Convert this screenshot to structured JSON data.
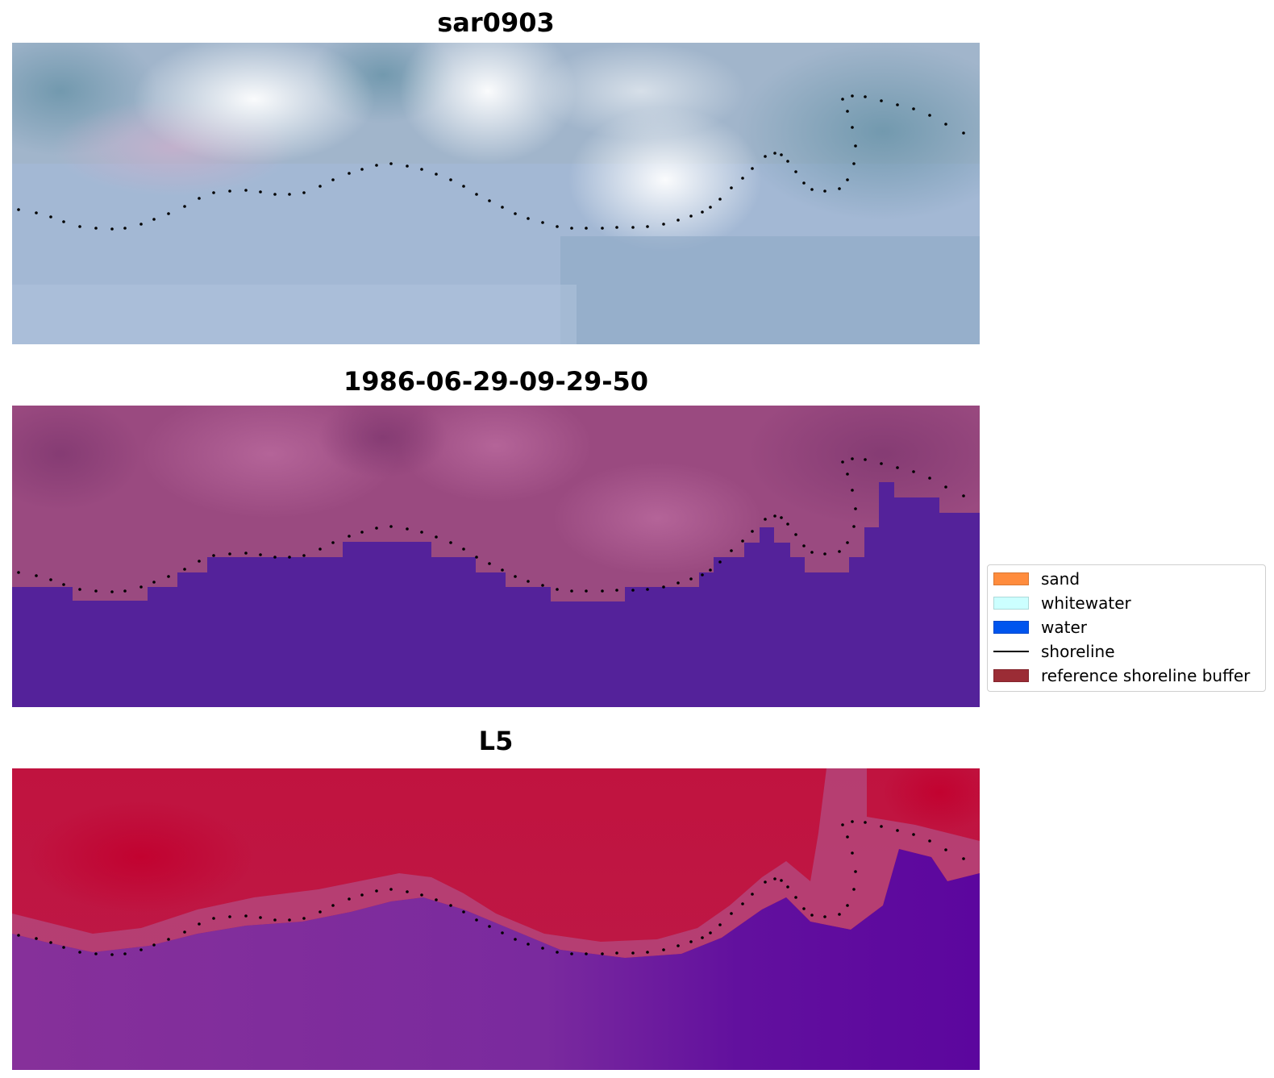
{
  "panels": [
    {
      "title": "sar0903",
      "base_color": "#9db2cc"
    },
    {
      "title": "1986-06-29-09-29-50",
      "base_color": "#a0507f"
    },
    {
      "title": "L5",
      "base_color": "#c0184a"
    }
  ],
  "legend": {
    "items": [
      {
        "label": "sand",
        "color": "#ff8c3d",
        "kind": "patch"
      },
      {
        "label": "whitewater",
        "color": "#ccffff",
        "kind": "patch"
      },
      {
        "label": "water",
        "color": "#0055ee",
        "kind": "patch"
      },
      {
        "label": "shoreline",
        "color": "#000000",
        "kind": "line"
      },
      {
        "label": "reference shoreline buffer",
        "color": "#9b2c35",
        "kind": "patch"
      }
    ]
  },
  "colors": {
    "water_class": "#54229a",
    "land_index": "#c0184a",
    "water_index": "#7b1fa2",
    "shoreline": "#000000"
  }
}
